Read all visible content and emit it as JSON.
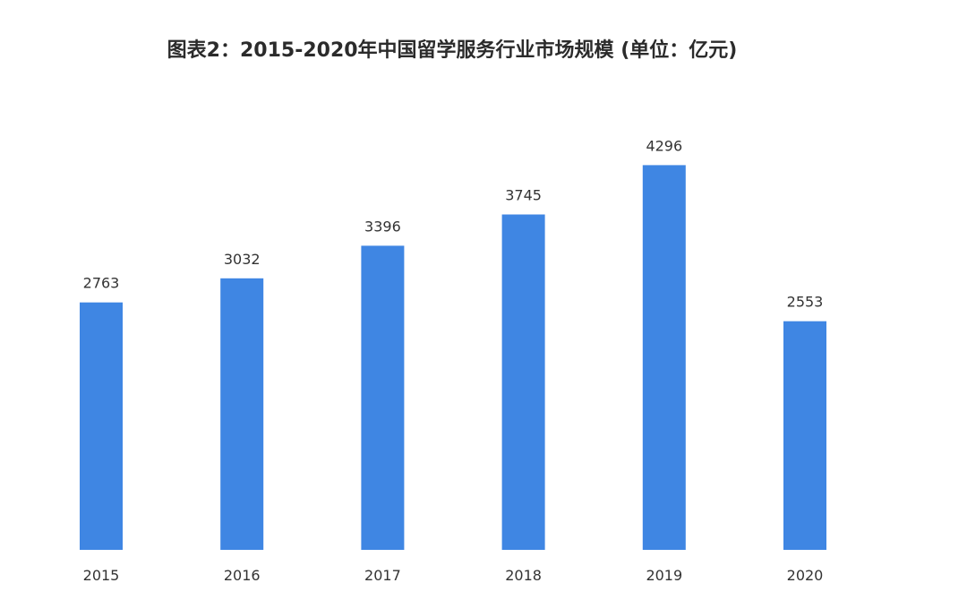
{
  "chart_data": {
    "type": "bar",
    "title": "图表2：2015-2020年中国留学服务行业市场规模 (单位：亿元)",
    "categories": [
      "2015",
      "2016",
      "2017",
      "2018",
      "2019",
      "2020"
    ],
    "values": [
      2763,
      3032,
      3396,
      3745,
      4296,
      2553
    ],
    "xlabel": "",
    "ylabel": "",
    "ylim": [
      0,
      4700
    ],
    "grid": false,
    "legend": "none",
    "bar_color": "#3f86e3",
    "data_labels": true
  }
}
